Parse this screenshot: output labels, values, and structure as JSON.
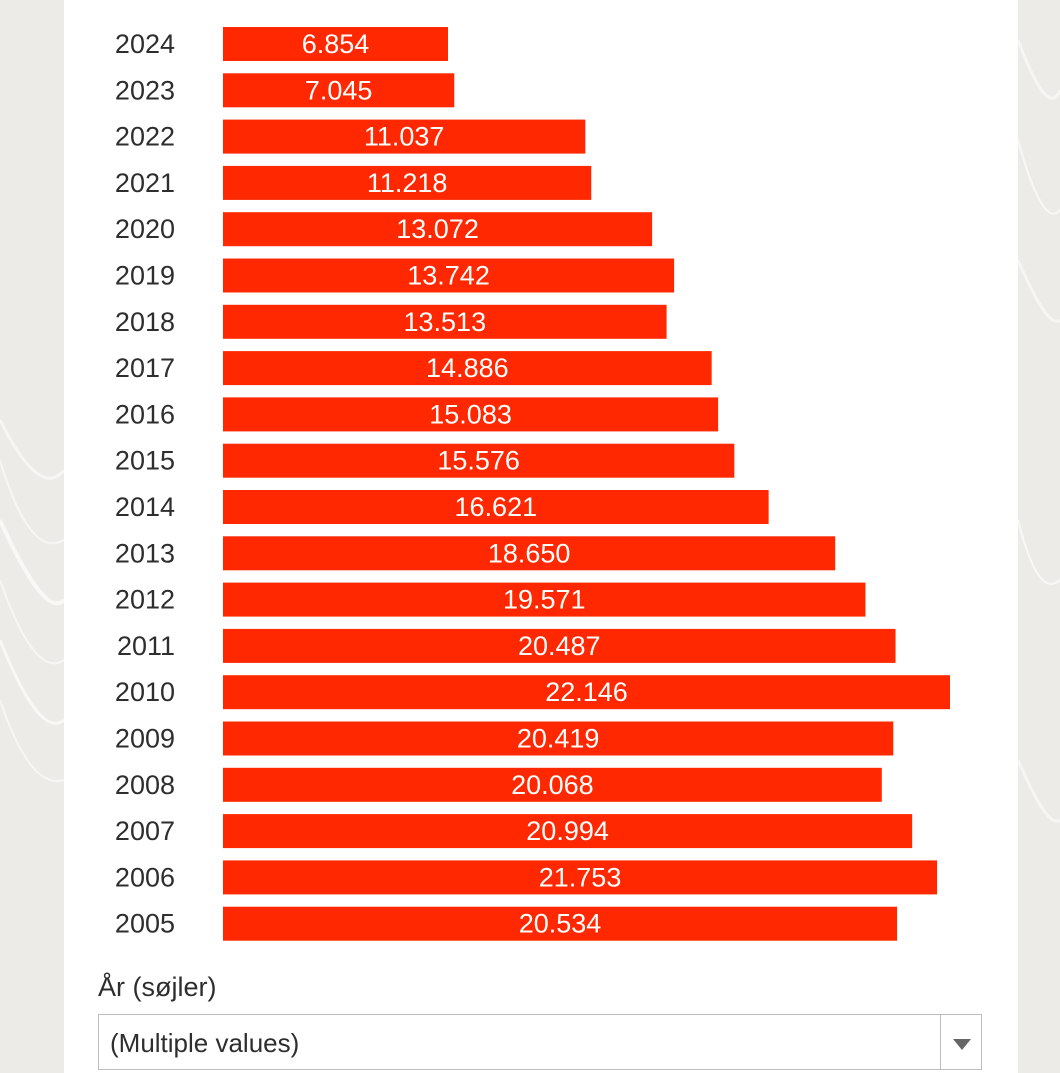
{
  "chart_data": {
    "type": "bar",
    "orientation": "horizontal",
    "categories": [
      "2024",
      "2023",
      "2022",
      "2021",
      "2020",
      "2019",
      "2018",
      "2017",
      "2016",
      "2015",
      "2014",
      "2013",
      "2012",
      "2011",
      "2010",
      "2009",
      "2008",
      "2007",
      "2006",
      "2005"
    ],
    "values": [
      6854,
      7045,
      11037,
      11218,
      13072,
      13742,
      13513,
      14886,
      15083,
      15576,
      16621,
      18650,
      19571,
      20487,
      22146,
      20419,
      20068,
      20994,
      21753,
      20534
    ],
    "value_labels": [
      "6.854",
      "7.045",
      "11.037",
      "11.218",
      "13.072",
      "13.742",
      "13.513",
      "14.886",
      "15.083",
      "15.576",
      "16.621",
      "18.650",
      "19.571",
      "20.487",
      "22.146",
      "20.419",
      "20.068",
      "20.994",
      "21.753",
      "20.534"
    ],
    "title": "",
    "xlabel": "",
    "ylabel": "",
    "xlim": [
      0,
      22146
    ],
    "grid": false,
    "bar_color": "#ff2800",
    "label_color": "#ffffff"
  },
  "filter": {
    "label": "År (søjler)",
    "selected_value": "(Multiple values)",
    "arrow_icon": "chevron-down-icon"
  }
}
